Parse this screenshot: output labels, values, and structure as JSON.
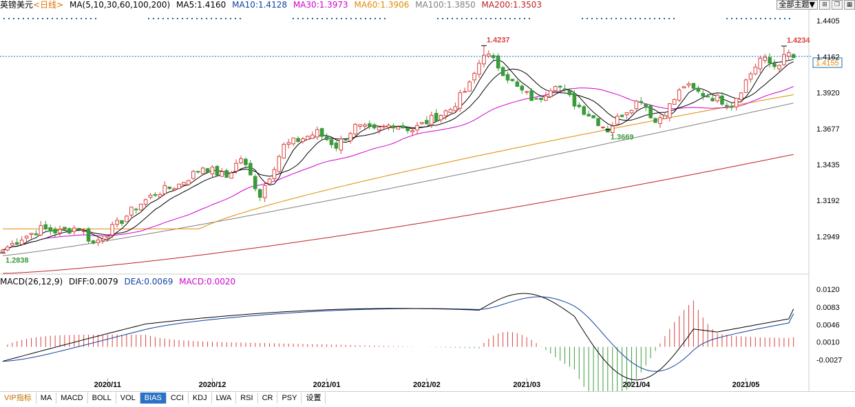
{
  "header": {
    "symbol": "英镑美元",
    "period": "<日线>",
    "ma_label": "MA(5,10,30,60,100,200)",
    "ma5": "MA5:1.4160",
    "ma10": "MA10:1.4128",
    "ma30": "MA30:1.3973",
    "ma60": "MA60:1.3906",
    "ma100": "MA100:1.3850",
    "ma200": "MA200:1.3503",
    "dropdown": "全部主题▼",
    "icons": [
      "zoom-in-icon",
      "restore-icon",
      "chart-icon"
    ]
  },
  "macd_header": {
    "label": "MACD(26,12,9)",
    "diff": "DIFF:0.0079",
    "dea": "DEA:0.0069",
    "macd": "MACD:0.0020"
  },
  "colors": {
    "up": "#d9413c",
    "down": "#3a9b3a",
    "ma5": "#000000",
    "ma10": "#000000",
    "ma30": "#d000d0",
    "ma60": "#e08a00",
    "ma100": "#808080",
    "ma200": "#c02020",
    "price_line": "#1a6fb3"
  },
  "tabs": [
    "VIP指标",
    "MA",
    "MACD",
    "BOLL",
    "VOL",
    "BIAS",
    "CCI",
    "KDJ",
    "LWA",
    "RSI",
    "CR",
    "PSY",
    "设置"
  ],
  "active_tab": "BIAS",
  "chart_data": [
    {
      "type": "candlestick",
      "x_ticks": [
        "2020/11",
        "2020/12",
        "2021/01",
        "2021/02",
        "2021/03",
        "2021/04",
        "2021/05"
      ],
      "y_ticks": [
        1.4405,
        1.4162,
        1.392,
        1.3677,
        1.3435,
        1.3192,
        1.2949
      ],
      "ylim": [
        1.27,
        1.448
      ],
      "current_price": 1.4155,
      "annotations": [
        {
          "label": "1.4237",
          "value": 1.4237,
          "kind": "high"
        },
        {
          "label": "1.4234",
          "value": 1.4234,
          "kind": "high"
        },
        {
          "label": "1.3669",
          "value": 1.3669,
          "kind": "low"
        },
        {
          "label": "1.2838",
          "value": 1.2838,
          "kind": "low"
        }
      ],
      "close_keypoints": [
        [
          0,
          1.2858
        ],
        [
          4,
          1.294
        ],
        [
          8,
          1.3
        ],
        [
          12,
          1.298
        ],
        [
          16,
          1.3015
        ],
        [
          19,
          1.29
        ],
        [
          24,
          1.303
        ],
        [
          28,
          1.315
        ],
        [
          32,
          1.324
        ],
        [
          37,
          1.33
        ],
        [
          42,
          1.342
        ],
        [
          47,
          1.335
        ],
        [
          50,
          1.348
        ],
        [
          54,
          1.323
        ],
        [
          59,
          1.356
        ],
        [
          62,
          1.36
        ],
        [
          66,
          1.365
        ],
        [
          70,
          1.356
        ],
        [
          74,
          1.369
        ],
        [
          78,
          1.366
        ],
        [
          82,
          1.371
        ],
        [
          86,
          1.367
        ],
        [
          90,
          1.374
        ],
        [
          94,
          1.381
        ],
        [
          98,
          1.397
        ],
        [
          101,
          1.4195
        ],
        [
          104,
          1.41
        ],
        [
          108,
          1.395
        ],
        [
          112,
          1.386
        ],
        [
          116,
          1.399
        ],
        [
          120,
          1.385
        ],
        [
          124,
          1.375
        ],
        [
          127,
          1.367
        ],
        [
          130,
          1.378
        ],
        [
          134,
          1.388
        ],
        [
          137,
          1.372
        ],
        [
          140,
          1.383
        ],
        [
          143,
          1.397
        ],
        [
          146,
          1.392
        ],
        [
          150,
          1.388
        ],
        [
          153,
          1.384
        ],
        [
          156,
          1.4
        ],
        [
          159,
          1.415
        ],
        [
          162,
          1.41
        ],
        [
          165,
          1.418
        ],
        [
          166,
          1.4155
        ]
      ],
      "ma5_end": 1.416,
      "ma10_end": 1.4128,
      "ma30_end": 1.3973,
      "ma60_end": 1.3906,
      "ma100_end": 1.385,
      "ma200_end": 1.3503
    },
    {
      "type": "macd",
      "y_ticks": [
        0.012,
        0.0083,
        0.0046,
        0.001,
        -0.0027
      ],
      "ylim": [
        -0.0065,
        0.013
      ],
      "diff_end": 0.0079,
      "dea_end": 0.0069,
      "macd_end": 0.002
    }
  ]
}
